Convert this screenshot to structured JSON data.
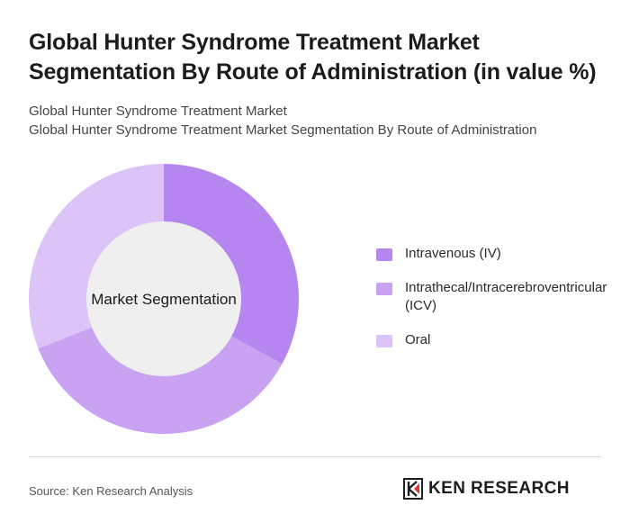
{
  "header": {
    "title_line1": "Global Hunter Syndrome Treatment Market",
    "title_line2": "Segmentation By Route of Administration (in value %)",
    "subtitle_line1": "Global Hunter Syndrome Treatment Market",
    "subtitle_line2": "Global Hunter Syndrome Treatment Market Segmentation By Route of Administration"
  },
  "chart_data": {
    "type": "pie",
    "variant": "donut",
    "center_label": "Market Segmentation",
    "categories": [
      "Intravenous (IV)",
      "Intrathecal/Intracerebroventricular (ICV)",
      "Oral"
    ],
    "values": [
      33,
      36,
      31
    ],
    "colors": [
      "#b586f0",
      "#c9a2f2",
      "#dcc3f8"
    ],
    "legend_position": "right"
  },
  "footer": {
    "source": "Source: Ken Research Analysis",
    "brand": "KEN RESEARCH"
  }
}
